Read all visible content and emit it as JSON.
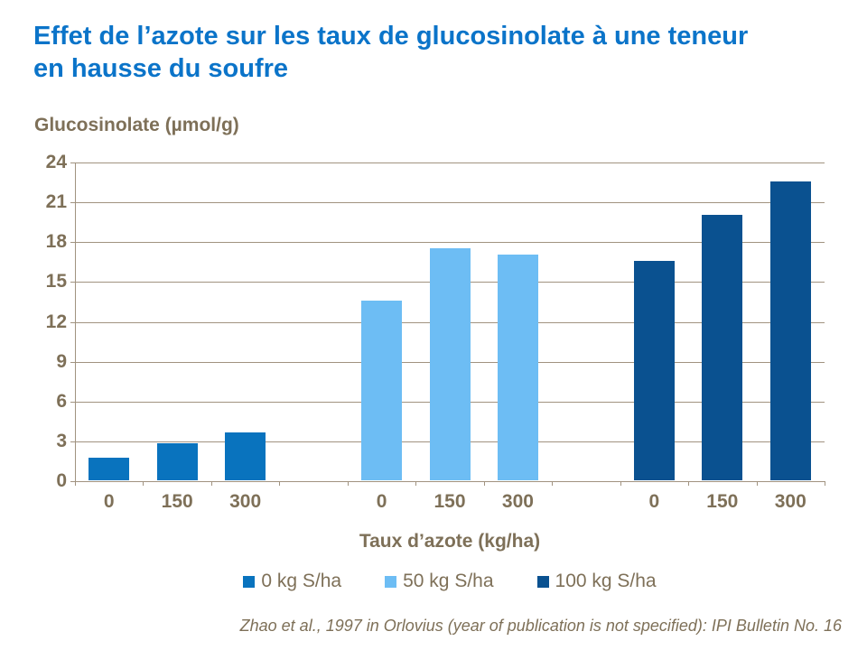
{
  "header": {
    "title_line1": "Effet de l’azote sur les taux de glucosinolate à une teneur",
    "title_line2": "en hausse du soufre"
  },
  "chart_data": {
    "type": "bar",
    "title": "Effet de l’azote sur les taux de glucosinolate à une teneur en hausse du soufre",
    "ylabel": "Glucosinolate (µmol/g)",
    "xlabel": "Taux d’azote (kg/ha)",
    "ylim": [
      0,
      24
    ],
    "yticks": [
      0,
      3,
      6,
      9,
      12,
      15,
      18,
      21,
      24
    ],
    "grid": true,
    "legend_position": "bottom",
    "categories": [
      "0",
      "150",
      "300"
    ],
    "series": [
      {
        "name": "0 kg S/ha",
        "color": "#0973BE",
        "values": [
          1.7,
          2.8,
          3.6
        ]
      },
      {
        "name": "50 kg S/ha",
        "color": "#6DBDF4",
        "values": [
          13.5,
          17.5,
          17.0
        ]
      },
      {
        "name": "100 kg S/ha",
        "color": "#0A5190",
        "values": [
          16.5,
          20.0,
          22.5
        ]
      }
    ]
  },
  "source": {
    "text": "Zhao et al., 1997 in Orlovius (year of publication is not specified): IPI Bulletin No. 16"
  },
  "colors": {
    "title": "#0B74C9",
    "text": "#7E7058",
    "grid": "#A19380",
    "background": "#FFFFFF"
  }
}
